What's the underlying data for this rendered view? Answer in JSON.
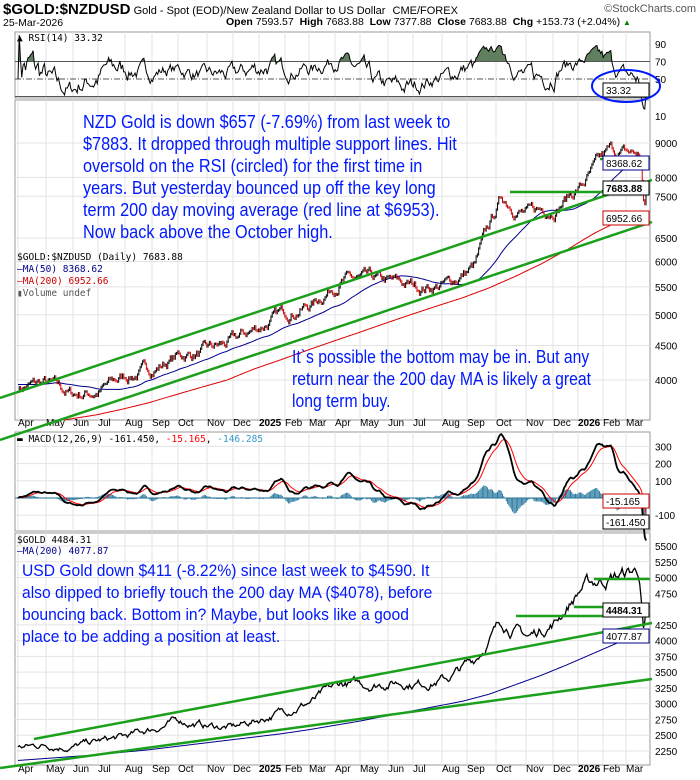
{
  "header": {
    "symbol": "$GOLD:$NZDUSD",
    "description": "Gold - Spot (EOD)/New Zealand Dollar to US Dollar",
    "exchange": "CME/FOREX",
    "brand": "©StockCharts.com",
    "date": "25-Mar-2026",
    "open_label": "Open",
    "open": "7593.57",
    "high_label": "High",
    "high": "7683.88",
    "low_label": "Low",
    "low": "7377.88",
    "close_label": "Close",
    "close": "7683.88",
    "chg_label": "Chg",
    "chg": "+153.73 (+2.04%)",
    "up_color": "#008000"
  },
  "annotations": {
    "nzd_main": [
      "NZD Gold is down $657 (-7.69%) from last week to",
      "$7883. It dropped through multiple support lines. Hit",
      "oversold on the RSI (circled) for the first time in",
      "years. But yesterday bounced up off the key long",
      "term 200 day moving average (red line at $6953).",
      "Now back above the October high."
    ],
    "nzd_bottom": [
      "It`s possible the bottom may be in. But any",
      "return near the 200 day MA is likely a great",
      "long term buy."
    ],
    "usd": [
      "USD Gold down $411 (-8.22%) since last week to $4590. It",
      "also dipped to briefly touch the 200 day MA ($4078), before",
      "bouncing back. Bottom in? Maybe, but looks like a good",
      "place to be adding a position at least."
    ],
    "color": "#0018ff"
  },
  "chart_data": [
    {
      "type": "line",
      "panel": "rsi",
      "title": "RSI(14) 33.32",
      "last_value": "33.32",
      "ticks": [
        "90",
        "70",
        "50",
        "10"
      ],
      "levels": [
        70,
        50,
        30
      ],
      "ylim": [
        10,
        100
      ],
      "fill_color": "#5f7f5f"
    },
    {
      "type": "line",
      "panel": "price-nzd",
      "scale": "log",
      "title": "$GOLD:$NZDUSD (Daily) 7683.88",
      "legend": [
        "MA(50) 8368.62",
        "MA(200) 6952.66",
        "Volume undef"
      ],
      "months": [
        "Apr",
        "May",
        "Jun",
        "Jul",
        "Aug",
        "Sep",
        "Oct",
        "Nov",
        "Dec",
        "2025",
        "Feb",
        "Mar",
        "Apr",
        "May",
        "Jun",
        "Jul",
        "Aug",
        "Sep",
        "Oct",
        "Nov",
        "Dec",
        "2026",
        "Feb",
        "Mar"
      ],
      "monthly_close": [
        3900,
        3950,
        3800,
        3850,
        4050,
        4150,
        4350,
        4400,
        4550,
        4800,
        5050,
        5200,
        5650,
        5600,
        5550,
        5500,
        5550,
        5900,
        7450,
        7050,
        7250,
        7800,
        8700,
        8650
      ],
      "recent": [
        8700,
        8650,
        8500,
        8300,
        7900,
        7400,
        7300,
        7683.88
      ],
      "ma200": [
        3400,
        3450,
        3500,
        3550,
        3620,
        3700,
        3800,
        3900,
        4000,
        4150,
        4280,
        4420,
        4560,
        4700,
        4850,
        5000,
        5150,
        5300,
        5480,
        5700,
        5950,
        6250,
        6600,
        6900,
        6952.66
      ],
      "ma50_last": "8368.62",
      "ma200_last": "6952.66",
      "last": "7683.88",
      "ticks": [
        9000,
        8000,
        7500,
        6500,
        6000,
        5500,
        5000,
        4500,
        4000
      ],
      "ylim": [
        3500,
        9800
      ]
    },
    {
      "type": "line",
      "panel": "macd",
      "title": "MACD(12,26,9)",
      "values": [
        "-161.450",
        "-15.165",
        "-146.285"
      ],
      "series_colors": [
        "#000000",
        "#ff0000",
        "#3399cc"
      ],
      "ticks": [
        "300",
        "200",
        "100",
        "-100"
      ],
      "ylim": [
        -200,
        350
      ]
    },
    {
      "type": "line",
      "panel": "price-usd",
      "scale": "linear",
      "title": "$GOLD 4484.31",
      "legend": [
        "MA(200) 4077.87"
      ],
      "months": [
        "Apr",
        "May",
        "Jun",
        "Jul",
        "Aug",
        "Sep",
        "Oct",
        "Nov",
        "Dec",
        "2025",
        "Feb",
        "Mar",
        "Apr",
        "May",
        "Jun",
        "Jul",
        "Aug",
        "Sep",
        "Oct",
        "Nov",
        "Dec",
        "2026",
        "Feb",
        "Mar"
      ],
      "monthly_close": [
        2300,
        2350,
        2320,
        2400,
        2470,
        2600,
        2730,
        2650,
        2620,
        2750,
        2900,
        3050,
        3300,
        3300,
        3350,
        3330,
        3400,
        3700,
        4300,
        4050,
        4300,
        4850,
        5000,
        5100
      ],
      "recent": [
        5050,
        5000,
        4900,
        4700,
        4450,
        4200,
        4300,
        4484.31
      ],
      "ma200": [
        2100,
        2130,
        2160,
        2190,
        2230,
        2270,
        2320,
        2370,
        2420,
        2470,
        2520,
        2580,
        2650,
        2720,
        2800,
        2880,
        2960,
        3040,
        3150,
        3300,
        3450,
        3620,
        3800,
        3980,
        4077.87
      ],
      "ma200_last": "4077.87",
      "last": "4484.31",
      "ticks": [
        5500,
        5250,
        5000,
        4750,
        4250,
        4000,
        3750,
        3500,
        3250,
        3000,
        2750,
        2500,
        2250
      ],
      "ylim": [
        2100,
        5700
      ]
    }
  ]
}
